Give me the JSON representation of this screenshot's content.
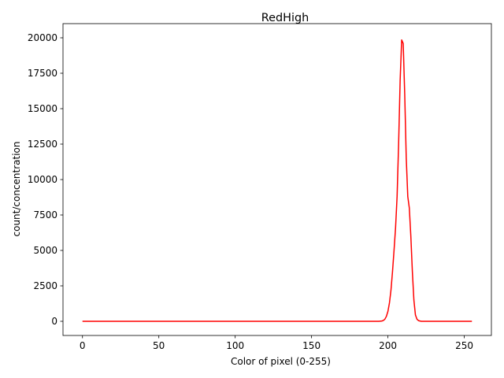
{
  "chart_data": {
    "type": "line",
    "title": "RedHigh",
    "xlabel": "Color of pixel (0-255)",
    "ylabel": "count/concentration",
    "xlim": [
      -12.75,
      267.75
    ],
    "ylim": [
      -1000,
      21000
    ],
    "xticks": [
      0,
      50,
      100,
      150,
      200,
      250
    ],
    "yticks": [
      0,
      2500,
      5000,
      7500,
      10000,
      12500,
      15000,
      17500,
      20000
    ],
    "grid": false,
    "series": [
      {
        "color": "#ff0000",
        "x": [
          0,
          50,
          100,
          150,
          190,
          194,
          196,
          197,
          198,
          199,
          200,
          201,
          202,
          203,
          204,
          205,
          206,
          207,
          208,
          209,
          210,
          211,
          212,
          213,
          214,
          215,
          216,
          217,
          218,
          219,
          220,
          221,
          222,
          224,
          226,
          230,
          240,
          250,
          255
        ],
        "y": [
          0,
          0,
          0,
          0,
          0,
          0,
          20,
          60,
          150,
          350,
          700,
          1300,
          2200,
          3500,
          5000,
          6600,
          8800,
          12500,
          17000,
          19850,
          19600,
          16000,
          11500,
          8800,
          8000,
          6000,
          3500,
          1500,
          450,
          150,
          50,
          20,
          0,
          0,
          0,
          0,
          0,
          0,
          0
        ]
      }
    ]
  }
}
